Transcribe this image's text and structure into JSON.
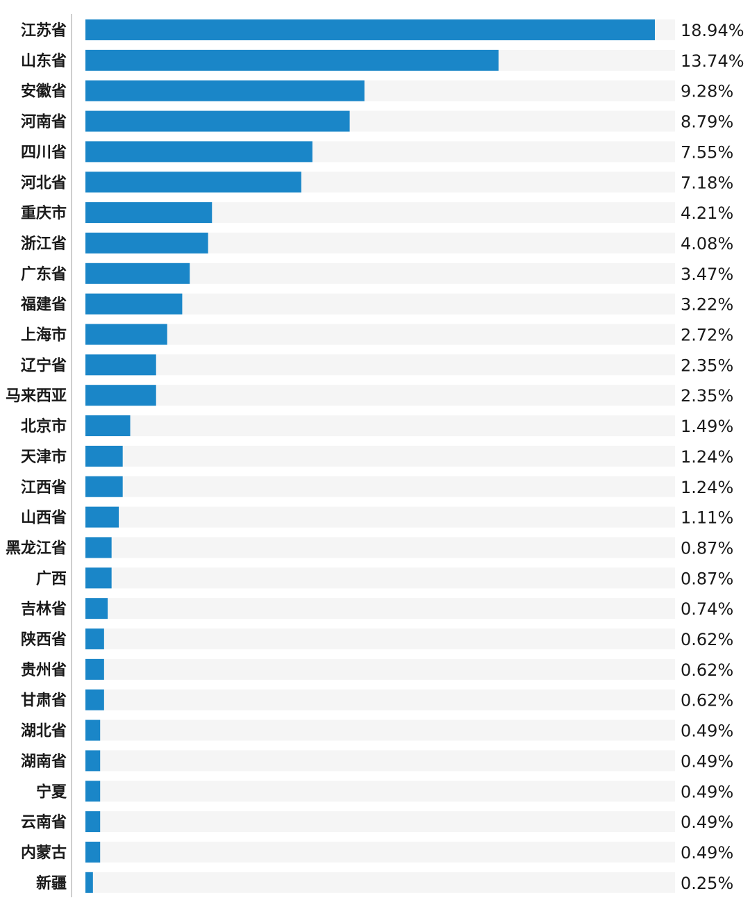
{
  "chart_data": {
    "type": "bar",
    "orientation": "horizontal",
    "categories": [
      "江苏省",
      "山东省",
      "安徽省",
      "河南省",
      "四川省",
      "河北省",
      "重庆市",
      "浙江省",
      "广东省",
      "福建省",
      "上海市",
      "辽宁省",
      "马来西亚",
      "北京市",
      "天津市",
      "江西省",
      "山西省",
      "黑龙江省",
      "广西",
      "吉林省",
      "陕西省",
      "贵州省",
      "甘肃省",
      "湖北省",
      "湖南省",
      "宁夏",
      "云南省",
      "内蒙古",
      "新疆"
    ],
    "values": [
      18.94,
      13.74,
      9.28,
      8.79,
      7.55,
      7.18,
      4.21,
      4.08,
      3.47,
      3.22,
      2.72,
      2.35,
      2.35,
      1.49,
      1.24,
      1.24,
      1.11,
      0.87,
      0.87,
      0.74,
      0.62,
      0.62,
      0.62,
      0.49,
      0.49,
      0.49,
      0.49,
      0.49,
      0.25
    ],
    "value_labels": [
      "18.94%",
      "13.74%",
      "9.28%",
      "8.79%",
      "7.55%",
      "7.18%",
      "4.21%",
      "4.08%",
      "3.47%",
      "3.22%",
      "2.72%",
      "2.35%",
      "2.35%",
      "1.49%",
      "1.24%",
      "1.24%",
      "1.11%",
      "0.87%",
      "0.87%",
      "0.74%",
      "0.62%",
      "0.62%",
      "0.62%",
      "0.49%",
      "0.49%",
      "0.49%",
      "0.49%",
      "0.49%",
      "0.25%"
    ],
    "xlim": [
      0,
      19.6
    ],
    "title": "",
    "xlabel": "",
    "ylabel": "",
    "grid": false,
    "legend": "none"
  },
  "colors": {
    "bar": "#1a86c8",
    "track": "#f5f5f5",
    "axis": "#cfcfcf",
    "text": "#1a1a1a"
  }
}
